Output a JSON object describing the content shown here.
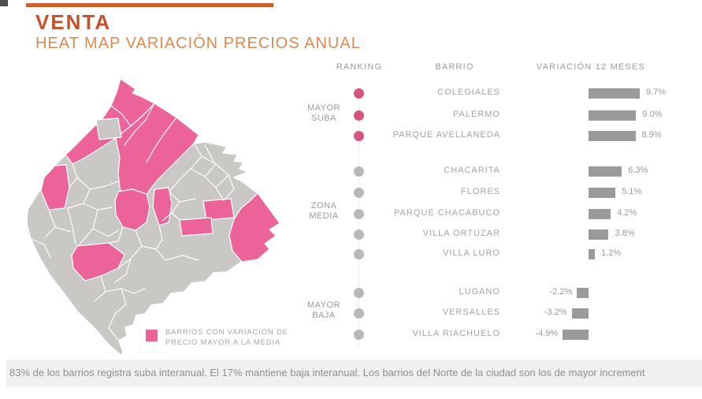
{
  "title": "VENTA",
  "subtitle": "HEAT MAP VARIACIÓN PRECIOS ANUAL",
  "table": {
    "headers": {
      "ranking": "RANKING",
      "barrio": "BARRIO",
      "variacion": "VARIACIÓN 12 MESES"
    },
    "groups": [
      {
        "label": "MAYOR SUBA",
        "dot_color": "#d75480",
        "rows": [
          {
            "barrio": "COLEGIALES",
            "value": 9.7,
            "value_label": "9.7%"
          },
          {
            "barrio": "PALERMO",
            "value": 9.0,
            "value_label": "9.0%"
          },
          {
            "barrio": "PARQUE AVELLANEDA",
            "value": 8.9,
            "value_label": "8.9%"
          }
        ]
      },
      {
        "label": "ZONA MEDIA",
        "dot_color": "#b8b8b8",
        "rows": [
          {
            "barrio": "CHACARITA",
            "value": 6.3,
            "value_label": "6.3%"
          },
          {
            "barrio": "FLORES",
            "value": 5.1,
            "value_label": "5.1%"
          },
          {
            "barrio": "PARQUE CHACABUCO",
            "value": 4.2,
            "value_label": "4.2%"
          },
          {
            "barrio": "VILLA ORTUZAR",
            "value": 3.8,
            "value_label": "3.8%"
          },
          {
            "barrio": "VILLA LURO",
            "value": 1.2,
            "value_label": "1.2%"
          }
        ]
      },
      {
        "label": "MAYOR BAJA",
        "dot_color": "#b8b8b8",
        "rows": [
          {
            "barrio": "LUGANO",
            "value": -2.2,
            "value_label": "-2.2%"
          },
          {
            "barrio": "VERSALLES",
            "value": -3.2,
            "value_label": "-3.2%"
          },
          {
            "barrio": "VILLA RIACHUELO",
            "value": -4.9,
            "value_label": "-4.9%"
          }
        ]
      }
    ]
  },
  "legend": {
    "line1": "BARRIOS CON VARIACION DE",
    "line2": "PRECIO MAYOR A LA MEDIA"
  },
  "footer": "83% de los barrios registra suba interanual. El 17% mantiene baja interanual. Los barrios del Norte de la ciudad son los de mayor increment",
  "colors": {
    "pink": "#ec639a",
    "dot_pink": "#d75480",
    "map_gray": "#cac8c5",
    "bar_gray": "#9a9a9a",
    "text_gray": "#a3a3a3",
    "head_gray": "#9b9b9b",
    "title_red": "#c4502c",
    "subtitle_orange": "#de8952",
    "rule_orange": "#d05d2c",
    "footer_bg": "#f1f0ee",
    "footer_text": "#8f8f8f"
  },
  "chart_data": {
    "type": "bar",
    "title": "VENTA — HEAT MAP VARIACIÓN PRECIOS ANUAL",
    "xlabel": "VARIACIÓN 12 MESES",
    "unit": "%",
    "categories": [
      "COLEGIALES",
      "PALERMO",
      "PARQUE AVELLANEDA",
      "CHACARITA",
      "FLORES",
      "PARQUE CHACABUCO",
      "VILLA ORTUZAR",
      "VILLA LURO",
      "LUGANO",
      "VERSALLES",
      "VILLA RIACHUELO"
    ],
    "values": [
      9.7,
      9.0,
      8.9,
      6.3,
      5.1,
      4.2,
      3.8,
      1.2,
      -2.2,
      -3.2,
      -4.9
    ],
    "groups": [
      "MAYOR SUBA",
      "MAYOR SUBA",
      "MAYOR SUBA",
      "ZONA MEDIA",
      "ZONA MEDIA",
      "ZONA MEDIA",
      "ZONA MEDIA",
      "ZONA MEDIA",
      "MAYOR BAJA",
      "MAYOR BAJA",
      "MAYOR BAJA"
    ],
    "orientation": "horizontal",
    "baseline": 0,
    "highlight_note": "map highlights barrios with variation above the mean in pink"
  }
}
